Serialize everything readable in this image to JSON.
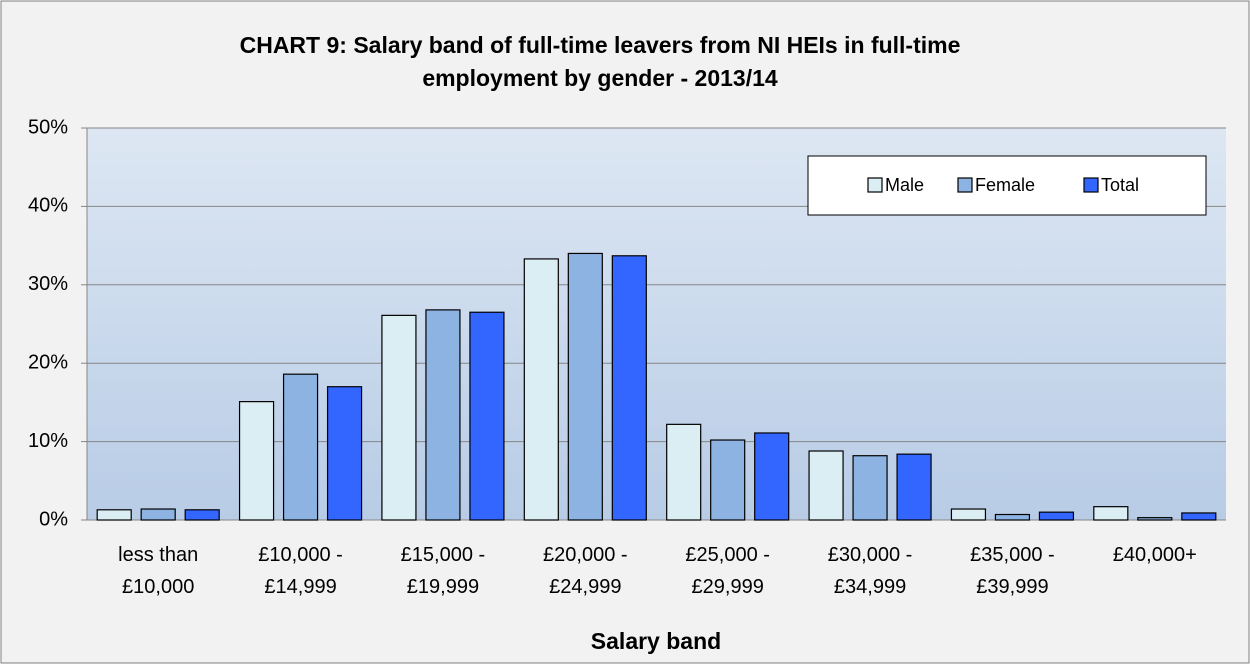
{
  "chart_data": {
    "type": "bar",
    "title": "CHART 9: Salary band of full-time leavers from NI HEIs in full-time employment by gender - 2013/14",
    "x_label": "Salary band",
    "categories": [
      "less than £10,000",
      "£10,000 - £14,999",
      "£15,000 - £19,999",
      "£20,000 - £24,999",
      "£25,000 - £29,999",
      "£30,000 - £34,999",
      "£35,000 - £39,999",
      "£40,000+"
    ],
    "series": [
      {
        "name": "Male",
        "color": "#dbeef4",
        "values": [
          1.3,
          15.1,
          26.1,
          33.3,
          12.2,
          8.8,
          1.4,
          1.7
        ]
      },
      {
        "name": "Female",
        "color": "#8db3e2",
        "values": [
          1.4,
          18.6,
          26.8,
          34.0,
          10.2,
          8.2,
          0.7,
          0.3
        ]
      },
      {
        "name": "Total",
        "color": "#3366ff",
        "values": [
          1.3,
          17.0,
          26.5,
          33.7,
          11.1,
          8.4,
          1.0,
          0.9
        ]
      }
    ],
    "ylim": [
      0,
      50
    ],
    "yticks": [
      {
        "value": 0,
        "label": "0%"
      },
      {
        "value": 10,
        "label": "10%"
      },
      {
        "value": 20,
        "label": "20%"
      },
      {
        "value": 30,
        "label": "30%"
      },
      {
        "value": 40,
        "label": "40%"
      },
      {
        "value": 50,
        "label": "50%"
      }
    ],
    "grid": true,
    "legend": "top-right"
  }
}
